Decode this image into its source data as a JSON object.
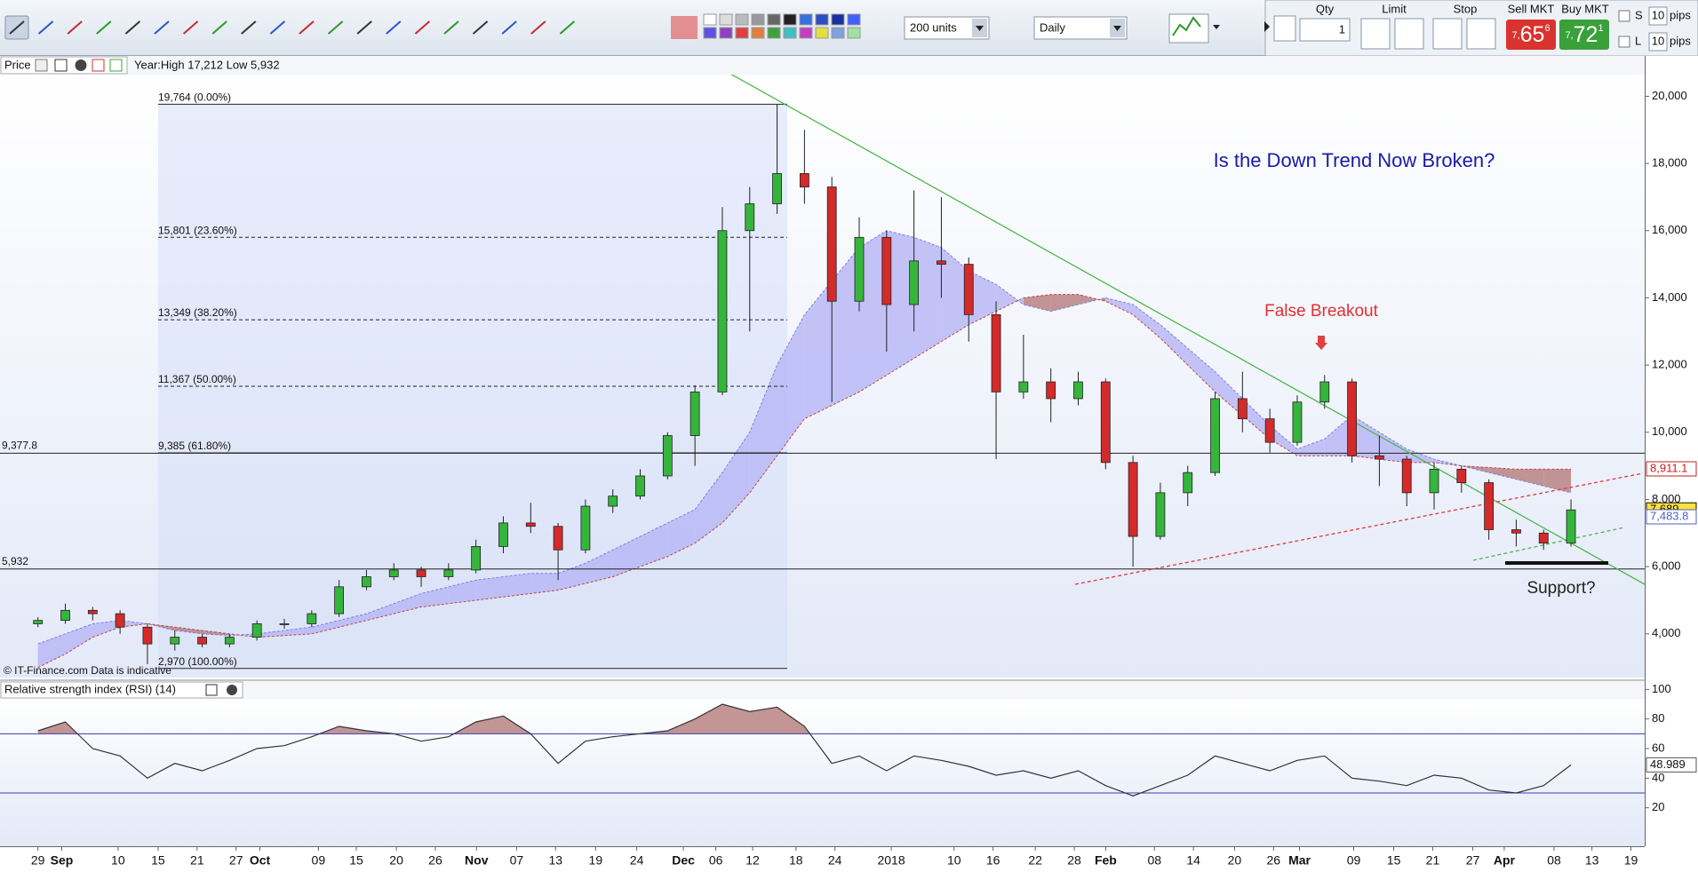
{
  "toolbar": {
    "units": "200 units",
    "interval": "Daily"
  },
  "trade_panel": {
    "qty_label": "Qty",
    "qty_value": "1",
    "limit_label": "Limit",
    "stop_label": "Stop",
    "sell_label": "Sell MKT",
    "sell_prefix": "7,",
    "sell_main": "65",
    "sell_suffix": "6",
    "buy_label": "Buy MKT",
    "buy_prefix": "7,",
    "buy_main": "72",
    "buy_suffix": "1",
    "s_label": "S",
    "s_value": "10",
    "s_unit": "pips",
    "l_label": "L",
    "l_value": "10",
    "l_unit": "pips"
  },
  "price_header": {
    "label": "Price",
    "info": "Year:High 17,212 Low 5,932"
  },
  "rsi_header": {
    "label": "Relative strength index (RSI) (14)"
  },
  "footnote": "© IT-Finance.com  Data is indicative",
  "x_axis": {
    "labels": [
      "29",
      "Sep",
      "10",
      "15",
      "21",
      "27",
      "Oct",
      "09",
      "15",
      "20",
      "26",
      "Nov",
      "07",
      "13",
      "19",
      "24",
      "Dec",
      "06",
      "12",
      "18",
      "24",
      "2018",
      "10",
      "16",
      "22",
      "28",
      "Feb",
      "08",
      "14",
      "20",
      "26",
      "Mar",
      "09",
      "15",
      "21",
      "27",
      "Apr",
      "08",
      "13",
      "19"
    ]
  },
  "chart_data": [
    {
      "type": "candlestick",
      "open": [
        4300,
        4400,
        4700,
        4600,
        4200,
        3700,
        3900,
        3700,
        3900,
        4300,
        4300,
        4600,
        5400,
        5700,
        5900,
        5700,
        5900,
        6600,
        7300,
        7200,
        6500,
        7800,
        8100,
        8700,
        9900,
        11200,
        16000,
        16800,
        17700,
        17300,
        13900,
        15800,
        13800,
        15100,
        15000,
        13500,
        11200,
        11500,
        11000,
        11500,
        9100,
        6900,
        8200,
        8800,
        11000,
        10400,
        9700,
        10900,
        11500,
        9300,
        9200,
        8200,
        8900,
        8500,
        7100,
        7000,
        6700
      ],
      "high": [
        4500,
        4900,
        4800,
        4700,
        4300,
        4100,
        4000,
        4000,
        4400,
        4450,
        4700,
        5600,
        5900,
        6100,
        6000,
        6100,
        6800,
        7500,
        7900,
        7300,
        8000,
        8300,
        8900,
        10000,
        11400,
        16700,
        17300,
        19764,
        19000,
        17600,
        16400,
        16000,
        17200,
        17000,
        15200,
        13900,
        12900,
        11900,
        11800,
        11600,
        9300,
        8500,
        9000,
        11200,
        11800,
        10700,
        11100,
        11700,
        11600,
        9900,
        9300,
        9100,
        9000,
        8600,
        7400,
        7100,
        8000
      ],
      "low": [
        4200,
        4300,
        4400,
        4000,
        3100,
        3500,
        3600,
        3600,
        3800,
        4150,
        4200,
        4500,
        5300,
        5600,
        5400,
        5600,
        5800,
        6400,
        7000,
        5600,
        6400,
        7600,
        8000,
        8600,
        9000,
        11100,
        13000,
        16500,
        16800,
        10900,
        13600,
        12400,
        13000,
        14000,
        12700,
        9200,
        11000,
        10300,
        10800,
        8900,
        6000,
        6800,
        7800,
        8700,
        10000,
        9400,
        9600,
        10700,
        9100,
        8400,
        7800,
        7700,
        8200,
        6800,
        6600,
        6500,
        6600
      ],
      "close": [
        4400,
        4700,
        4600,
        4200,
        3700,
        3900,
        3700,
        3900,
        4300,
        4300,
        4600,
        5400,
        5700,
        5900,
        5700,
        5900,
        6600,
        7300,
        7200,
        6500,
        7800,
        8100,
        8700,
        9900,
        11200,
        16000,
        16800,
        17700,
        17300,
        13900,
        15800,
        13800,
        15100,
        15000,
        13500,
        11200,
        11500,
        11000,
        11500,
        9100,
        6900,
        8200,
        8800,
        11000,
        10400,
        9700,
        10900,
        11500,
        9300,
        9200,
        8200,
        8900,
        8500,
        7100,
        7000,
        6700,
        7689
      ],
      "up_color": "#35b53b",
      "down_color": "#d42a2a",
      "cloud": {
        "lead_a": [
          3700,
          4000,
          4300,
          4400,
          4300,
          4100,
          4000,
          3950,
          4000,
          4100,
          4200,
          4400,
          4600,
          4900,
          5200,
          5400,
          5600,
          5700,
          5800,
          5800,
          6100,
          6500,
          6900,
          7300,
          7700,
          8800,
          10000,
          12000,
          13500,
          14500,
          15500,
          16000,
          15800,
          15500,
          14800,
          14400,
          13800,
          13600,
          13800,
          14000,
          13800,
          13200,
          12500,
          11800,
          11000,
          10200,
          9500,
          9800,
          10500,
          10000,
          9500,
          9200,
          9000,
          8800,
          8600,
          8400,
          8200
        ],
        "lead_b": [
          3000,
          3400,
          3900,
          4200,
          4300,
          4200,
          4100,
          4000,
          3900,
          3950,
          4000,
          4200,
          4400,
          4600,
          4800,
          4900,
          5000,
          5100,
          5200,
          5300,
          5500,
          5700,
          6000,
          6300,
          6700,
          7300,
          8200,
          9300,
          10400,
          10800,
          11200,
          11700,
          12200,
          12700,
          13200,
          13600,
          14000,
          14100,
          14100,
          13900,
          13500,
          12800,
          12000,
          11200,
          10500,
          9800,
          9300,
          9300,
          9300,
          9200,
          9100,
          9100,
          9000,
          8950,
          8900,
          8900,
          8900
        ],
        "up_color": "#b9b9f6",
        "down_color": "#b98383",
        "a_line_color": "#7f7fe0",
        "b_line_color": "#c04848"
      },
      "ylim": [
        2700,
        21200
      ],
      "yticks": [
        {
          "value": 4000,
          "label": "4,000"
        },
        {
          "value": 6000,
          "label": "6,000"
        },
        {
          "value": 8000,
          "label": "8,000"
        },
        {
          "value": 10000,
          "label": "10,000"
        },
        {
          "value": 12000,
          "label": "12,000"
        },
        {
          "value": 14000,
          "label": "14,000"
        },
        {
          "value": 16000,
          "label": "16,000"
        },
        {
          "value": 18000,
          "label": "18,000"
        },
        {
          "value": 20000,
          "label": "20,000"
        }
      ],
      "levels": [
        {
          "value": 9377.8,
          "label": "9,377.8"
        },
        {
          "value": 5932,
          "label": "5,932"
        }
      ],
      "fib_levels": [
        {
          "value": 19764,
          "label": "19,764 (0.00%)",
          "dashed": false
        },
        {
          "value": 15801,
          "label": "15,801 (23.60%)",
          "dashed": true
        },
        {
          "value": 13349,
          "label": "13,349 (38.20%)",
          "dashed": true
        },
        {
          "value": 11367,
          "label": "11,367 (50.00%)",
          "dashed": true
        },
        {
          "value": 9385,
          "label": "9,385 (61.80%)",
          "dashed": false
        },
        {
          "value": 2970,
          "label": "2,970 (100.00%)",
          "dashed": false
        }
      ],
      "markers": [
        {
          "value": 8911.1,
          "label": "8,911.1",
          "color": "#c02020",
          "bg": "#ffffff"
        },
        {
          "value": 7689,
          "label": "7,689",
          "color": "#111111",
          "bg": "#ffe23a"
        },
        {
          "value": 7483.8,
          "label": "7,483.8",
          "color": "#5060c0",
          "bg": "#ffffff"
        }
      ],
      "annotations": [
        {
          "text": "Is the Down Trend Now Broken?",
          "color": "#1a1aa8"
        },
        {
          "text": "False Breakout",
          "color": "#e03030"
        },
        {
          "text": "Support?",
          "color": "#222222"
        }
      ]
    },
    {
      "type": "line",
      "values": [
        72,
        78,
        60,
        55,
        40,
        50,
        45,
        52,
        60,
        62,
        68,
        75,
        72,
        70,
        65,
        68,
        78,
        82,
        70,
        50,
        65,
        68,
        70,
        72,
        80,
        90,
        85,
        88,
        75,
        50,
        55,
        45,
        55,
        52,
        48,
        42,
        45,
        40,
        45,
        35,
        28,
        35,
        42,
        55,
        50,
        45,
        52,
        55,
        40,
        38,
        35,
        42,
        40,
        32,
        30,
        35,
        48.989
      ],
      "color": "#333333",
      "fill_above_color": "#b98383",
      "ylim": [
        -6,
        105
      ],
      "yticks": [
        20,
        40,
        60,
        80,
        100
      ],
      "levels": [
        70,
        30
      ],
      "level_color": "#3a3ab8",
      "marker": 48.989
    }
  ]
}
